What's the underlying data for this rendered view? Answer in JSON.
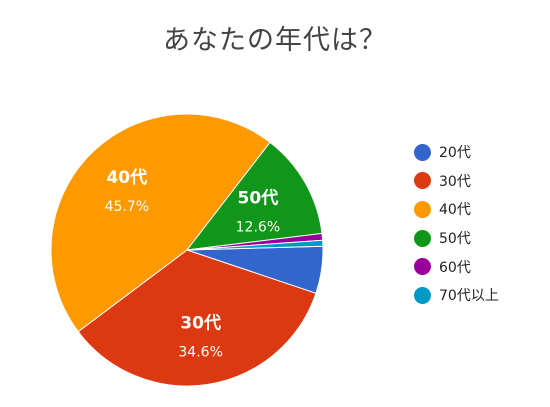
{
  "chart_data": {
    "type": "pie",
    "title": "あなたの年代は？",
    "legend_position": "right",
    "slices": [
      {
        "label": "20代",
        "value": 5.6,
        "color": "#3366cc"
      },
      {
        "label": "30代",
        "value": 34.6,
        "value_label": "34.6%",
        "color": "#dc3912"
      },
      {
        "label": "40代",
        "value": 45.7,
        "value_label": "45.7%",
        "color": "#ff9900"
      },
      {
        "label": "50代",
        "value": 12.6,
        "value_label": "12.6%",
        "color": "#109618"
      },
      {
        "label": "60代",
        "value": 0.8,
        "color": "#990099"
      },
      {
        "label": "70代以上",
        "value": 0.7,
        "color": "#0099c6"
      }
    ]
  }
}
